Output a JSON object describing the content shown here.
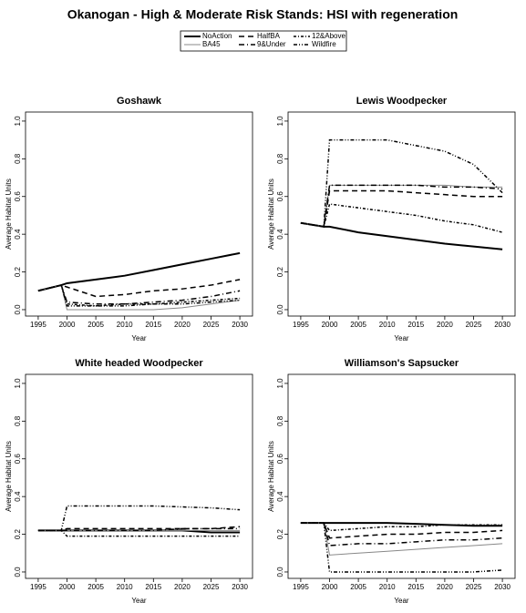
{
  "title": "Okanogan  - High & Moderate Risk Stands: HSI with regeneration",
  "chart_data": [
    {
      "type": "line",
      "title": "Goshawk",
      "x_label": "Year",
      "y_label": "Average Habitat Units",
      "x": [
        1995,
        1999,
        2000,
        2005,
        2010,
        2015,
        2020,
        2025,
        2030
      ],
      "xlim": [
        1992.8,
        2032.2
      ],
      "xticks": [
        1995,
        2000,
        2005,
        2010,
        2015,
        2020,
        2025,
        2030
      ],
      "ylim": [
        -0.034,
        1.048
      ],
      "yticks": [
        {
          "value": 0,
          "label": "0.0"
        },
        {
          "value": 0.2,
          "label": "0.2"
        },
        {
          "value": 0.4,
          "label": "0.4"
        },
        {
          "value": 0.6,
          "label": "0.6"
        },
        {
          "value": 0.8,
          "label": "0.8"
        },
        {
          "value": 1,
          "label": "1.0"
        }
      ],
      "series": [
        {
          "name": "NoAction",
          "color": "#000000",
          "dash": "none",
          "width": 2,
          "values": [
            0.1,
            0.13,
            0.14,
            0.16,
            0.18,
            0.21,
            0.24,
            0.27,
            0.3
          ]
        },
        {
          "name": "BA45",
          "color": "#888888",
          "dash": "none",
          "width": 1,
          "values": [
            0.1,
            0.13,
            0.0,
            0.0,
            0.0,
            0.0,
            0.01,
            0.03,
            0.05
          ]
        },
        {
          "name": "HalfBA",
          "color": "#000000",
          "dash": "6,4",
          "width": 1.5,
          "values": [
            0.1,
            0.13,
            0.12,
            0.07,
            0.08,
            0.1,
            0.11,
            0.13,
            0.16
          ]
        },
        {
          "name": "9&Under",
          "color": "#000000",
          "dash": "6,3,1,3",
          "width": 1.5,
          "values": [
            0.1,
            0.13,
            0.04,
            0.03,
            0.03,
            0.04,
            0.05,
            0.07,
            0.1
          ]
        },
        {
          "name": "12&Above",
          "color": "#000000",
          "dash": "3,2,1,2",
          "width": 1.5,
          "values": [
            0.1,
            0.13,
            0.03,
            0.02,
            0.03,
            0.03,
            0.04,
            0.05,
            0.06
          ]
        },
        {
          "name": "Wildfire",
          "color": "#000000",
          "dash": "4,2,1,2,1,2",
          "width": 1.5,
          "values": [
            0.1,
            0.13,
            0.02,
            0.02,
            0.02,
            0.03,
            0.03,
            0.04,
            0.05
          ]
        }
      ]
    },
    {
      "type": "line",
      "title": "Lewis Woodpecker",
      "x_label": "Year",
      "y_label": "Average Habitat Units",
      "x": [
        1995,
        1999,
        2000,
        2005,
        2010,
        2015,
        2020,
        2025,
        2030
      ],
      "xlim": [
        1992.8,
        2032.2
      ],
      "xticks": [
        1995,
        2000,
        2005,
        2010,
        2015,
        2020,
        2025,
        2030
      ],
      "ylim": [
        -0.034,
        1.048
      ],
      "yticks": [
        {
          "value": 0,
          "label": "0.0"
        },
        {
          "value": 0.2,
          "label": "0.2"
        },
        {
          "value": 0.4,
          "label": "0.4"
        },
        {
          "value": 0.6,
          "label": "0.6"
        },
        {
          "value": 0.8,
          "label": "0.8"
        },
        {
          "value": 1,
          "label": "1.0"
        }
      ],
      "series": [
        {
          "name": "NoAction",
          "color": "#000000",
          "dash": "none",
          "width": 2,
          "values": [
            0.46,
            0.44,
            0.44,
            0.41,
            0.39,
            0.37,
            0.35,
            0.335,
            0.32
          ]
        },
        {
          "name": "BA45",
          "color": "#888888",
          "dash": "none",
          "width": 1,
          "values": [
            0.46,
            0.44,
            0.66,
            0.66,
            0.66,
            0.66,
            0.66,
            0.65,
            0.65
          ]
        },
        {
          "name": "HalfBA",
          "color": "#000000",
          "dash": "6,4",
          "width": 1.5,
          "values": [
            0.46,
            0.44,
            0.63,
            0.63,
            0.63,
            0.62,
            0.61,
            0.6,
            0.6
          ]
        },
        {
          "name": "9&Under",
          "color": "#000000",
          "dash": "6,3,1,3",
          "width": 1.5,
          "values": [
            0.46,
            0.44,
            0.66,
            0.66,
            0.66,
            0.66,
            0.65,
            0.65,
            0.64
          ]
        },
        {
          "name": "12&Above",
          "color": "#000000",
          "dash": "3,2,1,2",
          "width": 1.5,
          "values": [
            0.46,
            0.44,
            0.56,
            0.54,
            0.52,
            0.5,
            0.47,
            0.45,
            0.41
          ]
        },
        {
          "name": "Wildfire",
          "color": "#000000",
          "dash": "4,2,1,2,1,2",
          "width": 1.5,
          "values": [
            0.46,
            0.44,
            0.9,
            0.9,
            0.9,
            0.87,
            0.84,
            0.77,
            0.62
          ]
        }
      ]
    },
    {
      "type": "line",
      "title": "White headed Woodpecker",
      "x_label": "Year",
      "y_label": "Average Habitat Units",
      "x": [
        1995,
        1999,
        2000,
        2005,
        2010,
        2015,
        2020,
        2025,
        2030
      ],
      "xlim": [
        1992.8,
        2032.2
      ],
      "xticks": [
        1995,
        2000,
        2005,
        2010,
        2015,
        2020,
        2025,
        2030
      ],
      "ylim": [
        -0.034,
        1.048
      ],
      "yticks": [
        {
          "value": 0,
          "label": "0.0"
        },
        {
          "value": 0.2,
          "label": "0.2"
        },
        {
          "value": 0.4,
          "label": "0.4"
        },
        {
          "value": 0.6,
          "label": "0.6"
        },
        {
          "value": 0.8,
          "label": "0.8"
        },
        {
          "value": 1,
          "label": "1.0"
        }
      ],
      "series": [
        {
          "name": "NoAction",
          "color": "#000000",
          "dash": "none",
          "width": 2,
          "values": [
            0.22,
            0.22,
            0.22,
            0.22,
            0.22,
            0.22,
            0.22,
            0.21,
            0.21
          ]
        },
        {
          "name": "BA45",
          "color": "#888888",
          "dash": "none",
          "width": 1,
          "values": [
            0.22,
            0.22,
            0.22,
            0.22,
            0.22,
            0.22,
            0.22,
            0.22,
            0.22
          ]
        },
        {
          "name": "HalfBA",
          "color": "#000000",
          "dash": "6,4",
          "width": 1.5,
          "values": [
            0.22,
            0.22,
            0.23,
            0.23,
            0.23,
            0.23,
            0.23,
            0.23,
            0.24
          ]
        },
        {
          "name": "9&Under",
          "color": "#000000",
          "dash": "6,3,1,3",
          "width": 1.5,
          "values": [
            0.22,
            0.22,
            0.22,
            0.22,
            0.22,
            0.22,
            0.23,
            0.23,
            0.23
          ]
        },
        {
          "name": "12&Above",
          "color": "#000000",
          "dash": "3,2,1,2",
          "width": 1.5,
          "values": [
            0.22,
            0.22,
            0.19,
            0.19,
            0.19,
            0.19,
            0.19,
            0.19,
            0.19
          ]
        },
        {
          "name": "Wildfire",
          "color": "#000000",
          "dash": "4,2,1,2,1,2",
          "width": 1.5,
          "values": [
            0.22,
            0.22,
            0.35,
            0.35,
            0.35,
            0.35,
            0.345,
            0.34,
            0.33
          ]
        }
      ]
    },
    {
      "type": "line",
      "title": "Williamson's Sapsucker",
      "x_label": "Year",
      "y_label": "Average Habitat Units",
      "x": [
        1995,
        1999,
        2000,
        2005,
        2010,
        2015,
        2020,
        2025,
        2030
      ],
      "xlim": [
        1992.8,
        2032.2
      ],
      "xticks": [
        1995,
        2000,
        2005,
        2010,
        2015,
        2020,
        2025,
        2030
      ],
      "ylim": [
        -0.034,
        1.048
      ],
      "yticks": [
        {
          "value": 0,
          "label": "0.0"
        },
        {
          "value": 0.2,
          "label": "0.2"
        },
        {
          "value": 0.4,
          "label": "0.4"
        },
        {
          "value": 0.6,
          "label": "0.6"
        },
        {
          "value": 0.8,
          "label": "0.8"
        },
        {
          "value": 1,
          "label": "1.0"
        }
      ],
      "series": [
        {
          "name": "NoAction",
          "color": "#000000",
          "dash": "none",
          "width": 2,
          "values": [
            0.26,
            0.26,
            0.26,
            0.26,
            0.26,
            0.255,
            0.25,
            0.245,
            0.245
          ]
        },
        {
          "name": "BA45",
          "color": "#888888",
          "dash": "none",
          "width": 1,
          "values": [
            0.26,
            0.26,
            0.09,
            0.1,
            0.11,
            0.12,
            0.13,
            0.14,
            0.15
          ]
        },
        {
          "name": "HalfBA",
          "color": "#000000",
          "dash": "6,4",
          "width": 1.5,
          "values": [
            0.26,
            0.26,
            0.18,
            0.19,
            0.2,
            0.2,
            0.21,
            0.21,
            0.22
          ]
        },
        {
          "name": "9&Under",
          "color": "#000000",
          "dash": "6,3,1,3",
          "width": 1.5,
          "values": [
            0.26,
            0.26,
            0.14,
            0.15,
            0.15,
            0.16,
            0.17,
            0.17,
            0.18
          ]
        },
        {
          "name": "12&Above",
          "color": "#000000",
          "dash": "3,2,1,2",
          "width": 1.5,
          "values": [
            0.26,
            0.26,
            0.22,
            0.23,
            0.24,
            0.24,
            0.25,
            0.25,
            0.25
          ]
        },
        {
          "name": "Wildfire",
          "color": "#000000",
          "dash": "4,2,1,2,1,2",
          "width": 1.5,
          "values": [
            0.26,
            0.26,
            0.0,
            0.0,
            0.0,
            0.0,
            0.0,
            0.0,
            0.01
          ]
        }
      ]
    }
  ]
}
